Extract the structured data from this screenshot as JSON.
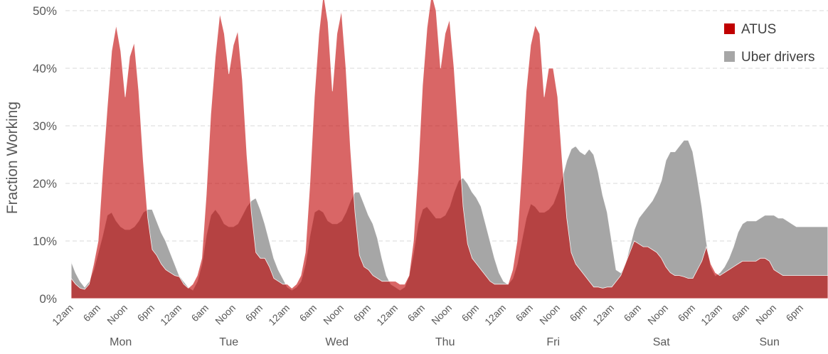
{
  "chart_data": {
    "type": "area",
    "ylabel": "Fraction Working",
    "ylim": [
      0,
      50
    ],
    "yticks": [
      "0%",
      "10%",
      "20%",
      "30%",
      "40%",
      "50%"
    ],
    "y_tick_values": [
      0,
      10,
      20,
      30,
      40,
      50
    ],
    "grid": "horizontal dashed",
    "legend_position": "top-right",
    "x_tick_labels": [
      "12am",
      "6am",
      "Noon",
      "6pm"
    ],
    "day_labels": [
      "Mon",
      "Tue",
      "Wed",
      "Thu",
      "Fri",
      "Sat",
      "Sun"
    ],
    "x_unit": "hours since Monday 12am",
    "series": [
      {
        "name": "ATUS",
        "color": "#c00000",
        "points": [
          [
            0,
            3.5
          ],
          [
            1,
            2.5
          ],
          [
            2,
            1.8
          ],
          [
            3,
            1.6
          ],
          [
            4,
            2.5
          ],
          [
            5,
            6
          ],
          [
            6,
            10
          ],
          [
            7,
            22
          ],
          [
            8,
            33
          ],
          [
            9,
            43
          ],
          [
            10,
            47.5
          ],
          [
            11,
            43
          ],
          [
            12,
            35
          ],
          [
            13,
            42
          ],
          [
            14,
            44.5
          ],
          [
            15,
            36
          ],
          [
            16,
            24
          ],
          [
            17,
            14
          ],
          [
            18,
            8.5
          ],
          [
            19,
            7.5
          ],
          [
            20,
            6
          ],
          [
            21,
            5
          ],
          [
            22,
            4.5
          ],
          [
            23,
            4
          ],
          [
            24,
            3.8
          ],
          [
            25,
            2.5
          ],
          [
            26,
            1.8
          ],
          [
            27,
            2.5
          ],
          [
            28,
            4
          ],
          [
            29,
            7
          ],
          [
            30,
            18
          ],
          [
            31,
            32
          ],
          [
            32,
            42
          ],
          [
            33,
            49.5
          ],
          [
            34,
            46
          ],
          [
            35,
            39
          ],
          [
            36,
            44
          ],
          [
            37,
            46.5
          ],
          [
            38,
            38
          ],
          [
            39,
            25
          ],
          [
            40,
            15
          ],
          [
            41,
            8
          ],
          [
            42,
            7
          ],
          [
            43,
            7
          ],
          [
            44,
            5.5
          ],
          [
            45,
            3.5
          ],
          [
            46,
            3
          ],
          [
            47,
            2.5
          ],
          [
            48,
            2.5
          ],
          [
            49,
            1.8
          ],
          [
            50,
            2.5
          ],
          [
            51,
            4
          ],
          [
            52,
            8
          ],
          [
            53,
            20
          ],
          [
            54,
            35
          ],
          [
            55,
            46
          ],
          [
            56,
            53
          ],
          [
            57,
            48
          ],
          [
            58,
            36
          ],
          [
            59,
            46
          ],
          [
            60,
            50
          ],
          [
            61,
            40
          ],
          [
            62,
            26
          ],
          [
            63,
            15
          ],
          [
            64,
            7.5
          ],
          [
            65,
            5.5
          ],
          [
            66,
            5
          ],
          [
            67,
            4
          ],
          [
            68,
            3.5
          ],
          [
            69,
            3
          ],
          [
            70,
            3
          ],
          [
            71,
            3
          ],
          [
            72,
            3
          ],
          [
            73,
            2.5
          ],
          [
            74,
            2.5
          ],
          [
            75,
            4
          ],
          [
            76,
            10
          ],
          [
            77,
            22
          ],
          [
            78,
            37
          ],
          [
            79,
            47
          ],
          [
            80,
            53
          ],
          [
            81,
            50
          ],
          [
            82,
            40
          ],
          [
            83,
            46
          ],
          [
            84,
            48.5
          ],
          [
            85,
            40
          ],
          [
            86,
            28
          ],
          [
            87,
            16
          ],
          [
            88,
            9.5
          ],
          [
            89,
            7
          ],
          [
            90,
            6
          ],
          [
            91,
            5
          ],
          [
            92,
            4
          ],
          [
            93,
            3
          ],
          [
            94,
            2.5
          ],
          [
            95,
            2.5
          ],
          [
            96,
            2.5
          ],
          [
            97,
            2.5
          ],
          [
            98,
            5
          ],
          [
            99,
            10
          ],
          [
            100,
            22
          ],
          [
            101,
            36
          ],
          [
            102,
            44
          ],
          [
            103,
            47.5
          ],
          [
            104,
            46
          ],
          [
            105,
            35
          ],
          [
            106,
            40
          ],
          [
            107,
            40
          ],
          [
            108,
            35
          ],
          [
            109,
            24
          ],
          [
            110,
            14
          ],
          [
            111,
            8
          ],
          [
            112,
            6
          ],
          [
            113,
            5
          ],
          [
            114,
            4
          ],
          [
            115,
            3
          ],
          [
            116,
            2
          ],
          [
            117,
            2
          ],
          [
            118,
            1.8
          ],
          [
            119,
            2
          ],
          [
            120,
            2
          ],
          [
            121,
            3
          ],
          [
            122,
            4
          ],
          [
            123,
            6
          ],
          [
            124,
            8
          ],
          [
            125,
            10
          ],
          [
            126,
            9.5
          ],
          [
            127,
            9
          ],
          [
            128,
            9
          ],
          [
            129,
            8.5
          ],
          [
            130,
            8
          ],
          [
            131,
            7
          ],
          [
            132,
            5.5
          ],
          [
            133,
            4.5
          ],
          [
            134,
            4
          ],
          [
            135,
            4
          ],
          [
            136,
            3.8
          ],
          [
            137,
            3.5
          ],
          [
            138,
            3.5
          ],
          [
            139,
            5
          ],
          [
            140,
            6.5
          ],
          [
            141,
            9
          ],
          [
            142,
            6
          ],
          [
            143,
            4.5
          ],
          [
            144,
            4
          ],
          [
            145,
            4.5
          ],
          [
            146,
            5
          ],
          [
            147,
            5.5
          ],
          [
            148,
            6
          ],
          [
            149,
            6.5
          ],
          [
            150,
            6.5
          ],
          [
            151,
            6.5
          ],
          [
            152,
            6.5
          ],
          [
            153,
            7
          ],
          [
            154,
            7
          ],
          [
            155,
            6.5
          ],
          [
            156,
            5
          ],
          [
            157,
            4.5
          ],
          [
            158,
            4
          ],
          [
            159,
            4
          ],
          [
            160,
            4
          ],
          [
            161,
            4
          ],
          [
            162,
            4
          ],
          [
            163,
            4
          ],
          [
            164,
            4
          ],
          [
            165,
            4
          ],
          [
            166,
            4
          ],
          [
            167,
            4
          ],
          [
            168,
            4
          ]
        ]
      },
      {
        "name": "Uber drivers",
        "color": "#a6a6a6",
        "points": [
          [
            0,
            6.5
          ],
          [
            1,
            4.5
          ],
          [
            2,
            3
          ],
          [
            3,
            2
          ],
          [
            4,
            3
          ],
          [
            5,
            5
          ],
          [
            6,
            8
          ],
          [
            7,
            11
          ],
          [
            8,
            14.5
          ],
          [
            9,
            15
          ],
          [
            10,
            13.5
          ],
          [
            11,
            12.5
          ],
          [
            12,
            12
          ],
          [
            13,
            12
          ],
          [
            14,
            12.5
          ],
          [
            15,
            13.5
          ],
          [
            16,
            15
          ],
          [
            17,
            15.5
          ],
          [
            18,
            15.5
          ],
          [
            19,
            13.5
          ],
          [
            20,
            11.5
          ],
          [
            21,
            10
          ],
          [
            22,
            8
          ],
          [
            23,
            6
          ],
          [
            24,
            4
          ],
          [
            25,
            3
          ],
          [
            26,
            2
          ],
          [
            27,
            1.5
          ],
          [
            28,
            3
          ],
          [
            29,
            6
          ],
          [
            30,
            11
          ],
          [
            31,
            14.5
          ],
          [
            32,
            15.5
          ],
          [
            33,
            14.5
          ],
          [
            34,
            13
          ],
          [
            35,
            12.5
          ],
          [
            36,
            12.5
          ],
          [
            37,
            13
          ],
          [
            38,
            14.5
          ],
          [
            39,
            16
          ],
          [
            40,
            17
          ],
          [
            41,
            17.5
          ],
          [
            42,
            15.5
          ],
          [
            43,
            13
          ],
          [
            44,
            10
          ],
          [
            45,
            7
          ],
          [
            46,
            5
          ],
          [
            47,
            3.5
          ],
          [
            48,
            2
          ],
          [
            49,
            1.5
          ],
          [
            50,
            2
          ],
          [
            51,
            3
          ],
          [
            52,
            6
          ],
          [
            53,
            11
          ],
          [
            54,
            15
          ],
          [
            55,
            15.5
          ],
          [
            56,
            15
          ],
          [
            57,
            13.5
          ],
          [
            58,
            13
          ],
          [
            59,
            13
          ],
          [
            60,
            13.5
          ],
          [
            61,
            15
          ],
          [
            62,
            17
          ],
          [
            63,
            18.5
          ],
          [
            64,
            18.5
          ],
          [
            65,
            16.5
          ],
          [
            66,
            14.5
          ],
          [
            67,
            13
          ],
          [
            68,
            10.5
          ],
          [
            69,
            7
          ],
          [
            70,
            4
          ],
          [
            71,
            2.5
          ],
          [
            72,
            2
          ],
          [
            73,
            1.5
          ],
          [
            74,
            2
          ],
          [
            75,
            4
          ],
          [
            76,
            8
          ],
          [
            77,
            13
          ],
          [
            78,
            15.5
          ],
          [
            79,
            16
          ],
          [
            80,
            15
          ],
          [
            81,
            14
          ],
          [
            82,
            14
          ],
          [
            83,
            14.5
          ],
          [
            84,
            16
          ],
          [
            85,
            18.5
          ],
          [
            86,
            20.5
          ],
          [
            87,
            21
          ],
          [
            88,
            20
          ],
          [
            89,
            18.5
          ],
          [
            90,
            17.5
          ],
          [
            91,
            16
          ],
          [
            92,
            13
          ],
          [
            93,
            10
          ],
          [
            94,
            7
          ],
          [
            95,
            4.5
          ],
          [
            96,
            3
          ],
          [
            97,
            2.5
          ],
          [
            98,
            3.5
          ],
          [
            99,
            6
          ],
          [
            100,
            10
          ],
          [
            101,
            14
          ],
          [
            102,
            16.5
          ],
          [
            103,
            16
          ],
          [
            104,
            15
          ],
          [
            105,
            15
          ],
          [
            106,
            15.5
          ],
          [
            107,
            16.5
          ],
          [
            108,
            18.5
          ],
          [
            109,
            21
          ],
          [
            110,
            24
          ],
          [
            111,
            26
          ],
          [
            112,
            26.5
          ],
          [
            113,
            25.5
          ],
          [
            114,
            25
          ],
          [
            115,
            26
          ],
          [
            116,
            25
          ],
          [
            117,
            22
          ],
          [
            118,
            18
          ],
          [
            119,
            15
          ],
          [
            120,
            10
          ],
          [
            121,
            5
          ],
          [
            122,
            4.5
          ],
          [
            123,
            6
          ],
          [
            124,
            9
          ],
          [
            125,
            12
          ],
          [
            126,
            14
          ],
          [
            127,
            15
          ],
          [
            128,
            16
          ],
          [
            129,
            17
          ],
          [
            130,
            18.5
          ],
          [
            131,
            20.5
          ],
          [
            132,
            24
          ],
          [
            133,
            25.5
          ],
          [
            134,
            25.5
          ],
          [
            135,
            26.5
          ],
          [
            136,
            27.5
          ],
          [
            137,
            27.5
          ],
          [
            138,
            25.5
          ],
          [
            139,
            21
          ],
          [
            140,
            16
          ],
          [
            141,
            10
          ],
          [
            142,
            5.5
          ],
          [
            143,
            4
          ],
          [
            144,
            4.5
          ],
          [
            145,
            5.5
          ],
          [
            146,
            7
          ],
          [
            147,
            9
          ],
          [
            148,
            11.5
          ],
          [
            149,
            13
          ],
          [
            150,
            13.5
          ],
          [
            151,
            13.5
          ],
          [
            152,
            13.5
          ],
          [
            153,
            14
          ],
          [
            154,
            14.5
          ],
          [
            155,
            14.5
          ],
          [
            156,
            14.5
          ],
          [
            157,
            14
          ],
          [
            158,
            14
          ],
          [
            159,
            13.5
          ],
          [
            160,
            13
          ],
          [
            161,
            12.5
          ],
          [
            162,
            12.5
          ],
          [
            163,
            12.5
          ],
          [
            164,
            12.5
          ],
          [
            165,
            12.5
          ],
          [
            166,
            12.5
          ],
          [
            167,
            12.5
          ],
          [
            168,
            12.5
          ]
        ]
      }
    ]
  }
}
